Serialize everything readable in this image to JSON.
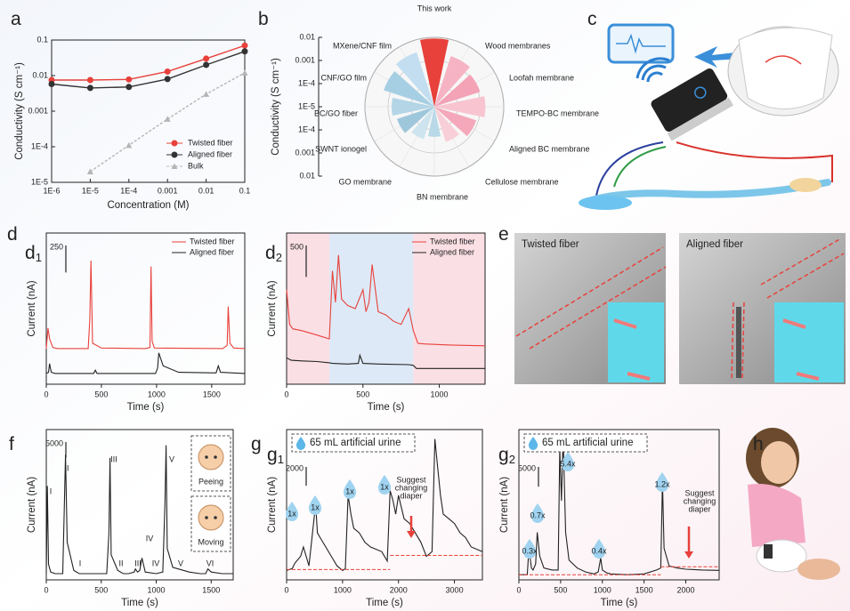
{
  "groups": [
    {
      "label": "d"
    },
    {
      "label": "g"
    }
  ],
  "figures": [
    {
      "label": "c"
    },
    {
      "label": "e",
      "captions": [
        "Twisted fiber",
        "Aligned fiber"
      ]
    },
    {
      "label": "h"
    }
  ],
  "chart_data": [
    {
      "type": "line",
      "label": "a",
      "xlabel": "Concentration (M)",
      "ylabel": "Conductivity (S cm⁻¹)",
      "xscale": "log",
      "yscale": "log",
      "legend": "lower right",
      "x": [
        1e-06,
        1e-05,
        0.0001,
        0.001,
        0.01,
        0.1
      ],
      "xlim": [
        1e-06,
        0.1
      ],
      "xticks": [
        {
          "value": 1e-06,
          "label": "1E-6"
        },
        {
          "value": 1e-05,
          "label": "1E-5"
        },
        {
          "value": 0.0001,
          "label": "1E-4"
        },
        0.001,
        0.01,
        0.1
      ],
      "ylim": [
        1e-05,
        0.1
      ],
      "yticks": [
        {
          "value": 1e-05,
          "label": "1E-5"
        },
        {
          "value": 0.0001,
          "label": "1E-4"
        },
        0.001,
        0.01,
        0.1
      ],
      "series": [
        {
          "name": "Twisted fiber",
          "color": "#e8413b",
          "marker": "circle",
          "values": [
            0.0075,
            0.0075,
            0.0078,
            0.013,
            0.03,
            0.07
          ]
        },
        {
          "name": "Aligned fiber",
          "color": "#333333",
          "marker": "circle",
          "values": [
            0.0058,
            0.0045,
            0.0048,
            0.008,
            0.02,
            0.048
          ]
        },
        {
          "name": "Bulk",
          "color": "#b5b5b5",
          "marker": "triangle",
          "dash": true,
          "values": [
            null,
            2e-05,
            0.00011,
            0.0006,
            0.003,
            0.012
          ]
        }
      ]
    },
    {
      "type": "polar-bar",
      "label": "b",
      "ylabel": "Conductivity (S cm⁻¹)",
      "rscale": "log",
      "rlim": [
        1e-05,
        0.01
      ],
      "rticks": [
        {
          "value": 1e-05,
          "label": "1E-5"
        },
        {
          "value": 0.0001,
          "label": "1E-4"
        },
        0.001,
        0.01
      ],
      "categories": [
        "This work",
        "Wood membranes",
        "Loofah membrane",
        "TEMPO-BC membrane",
        "Aligned BC membrane",
        "Cellulose membrane",
        "BN membrane",
        "GO membrane",
        "SWNT ionogel",
        "BC/GO fiber",
        "CNF/GO film",
        "MXene/CNF film"
      ],
      "values": [
        0.009,
        0.002,
        0.0012,
        0.0016,
        0.0008,
        0.0004,
        0.0002,
        0.0003,
        0.0005,
        0.0007,
        0.002,
        0.003
      ],
      "colors": [
        "#e8413b",
        "#f6b3c3",
        "#f4a2b6",
        "#f7c4d0",
        "#f4a8ba",
        "#f8cfd8",
        "#b9d9e8",
        "#cde4ee",
        "#9fc7dc",
        "#b3d5e6",
        "#a7cfe3",
        "#c2def0"
      ]
    },
    {
      "type": "trace",
      "label": "d",
      "label_sub": "1",
      "xlabel": "Time (s)",
      "ylabel": "Current (nA)",
      "xlim": [
        0,
        1800
      ],
      "xticks": [
        0,
        500,
        1000,
        1500
      ],
      "ylim": [
        0,
        1400
      ],
      "scalebar": 250,
      "series": [
        {
          "name": "Twisted fiber",
          "color": "#e8413b",
          "x": [
            0,
            15,
            30,
            60,
            100,
            380,
            395,
            405,
            420,
            500,
            900,
            940,
            950,
            960,
            980,
            1600,
            1640,
            1650,
            1665,
            1700,
            1800
          ],
          "values": [
            330,
            520,
            420,
            340,
            330,
            330,
            600,
            1145,
            380,
            335,
            330,
            340,
            1090,
            400,
            335,
            330,
            360,
            720,
            380,
            335,
            330
          ]
        },
        {
          "name": "Aligned fiber",
          "color": "#222222",
          "x": [
            0,
            20,
            30,
            45,
            80,
            430,
            445,
            460,
            990,
            1010,
            1020,
            1060,
            1200,
            1540,
            1560,
            1580,
            1800
          ],
          "values": [
            100,
            110,
            190,
            110,
            100,
            100,
            130,
            100,
            100,
            150,
            290,
            170,
            110,
            105,
            170,
            110,
            100
          ]
        }
      ]
    },
    {
      "type": "trace",
      "label": "d",
      "label_sub": "2",
      "xlabel": "Time (s)",
      "ylabel": "Current (nA)",
      "xlim": [
        0,
        1300
      ],
      "xticks": [
        0,
        500,
        1000
      ],
      "ylim": [
        0,
        2400
      ],
      "scalebar": 500,
      "regions": [
        {
          "x": [
            0,
            280
          ],
          "color": "#fadfe5"
        },
        {
          "x": [
            280,
            830
          ],
          "color": "#dde9f6"
        },
        {
          "x": [
            830,
            1300
          ],
          "color": "#fadfe5"
        }
      ],
      "series": [
        {
          "name": "Twisted fiber",
          "color": "#e8413b",
          "x": [
            0,
            20,
            40,
            100,
            200,
            280,
            300,
            320,
            340,
            360,
            400,
            450,
            500,
            520,
            540,
            560,
            600,
            650,
            700,
            750,
            800,
            830,
            860,
            900,
            1000,
            1100,
            1300
          ],
          "values": [
            1500,
            950,
            880,
            850,
            780,
            720,
            1800,
            1300,
            2050,
            1350,
            1250,
            1200,
            1500,
            1150,
            1300,
            1900,
            1150,
            1100,
            1000,
            950,
            1200,
            850,
            650,
            640,
            630,
            620,
            610
          ]
        },
        {
          "name": "Aligned fiber",
          "color": "#222222",
          "x": [
            0,
            30,
            100,
            200,
            280,
            300,
            400,
            470,
            480,
            500,
            600,
            800,
            830,
            850,
            1300
          ],
          "values": [
            420,
            380,
            370,
            360,
            340,
            330,
            320,
            330,
            460,
            330,
            320,
            310,
            300,
            250,
            250
          ]
        }
      ]
    },
    {
      "type": "trace",
      "label": "f",
      "xlabel": "Time (s)",
      "ylabel": "Current (nA)",
      "xlim": [
        0,
        1700
      ],
      "xticks": [
        0,
        500,
        1000,
        1500
      ],
      "ylim": [
        0,
        48000
      ],
      "scalebar": 5000,
      "icons": [
        "Peeing",
        "Moving"
      ],
      "annotations": [
        {
          "text": "I",
          "color": "#e8413b"
        },
        {
          "text": "II",
          "color": "#e8413b"
        },
        {
          "text": "III",
          "color": "#e8413b"
        },
        {
          "text": "IV",
          "color": "#e8413b"
        },
        {
          "text": "V",
          "color": "#e8413b"
        },
        {
          "text": "I",
          "color": "#222222"
        },
        {
          "text": "II",
          "color": "#222222"
        },
        {
          "text": "III",
          "color": "#222222"
        },
        {
          "text": "IV",
          "color": "#222222"
        },
        {
          "text": "V",
          "color": "#222222"
        },
        {
          "text": "VI",
          "color": "#222222"
        }
      ],
      "series": [
        {
          "color": "#222222",
          "x": [
            0,
            10,
            20,
            40,
            80,
            150,
            165,
            175,
            190,
            250,
            300,
            550,
            570,
            580,
            590,
            650,
            700,
            750,
            800,
            810,
            830,
            850,
            870,
            900,
            1000,
            1060,
            1080,
            1090,
            1100,
            1150,
            1300,
            1400,
            1450,
            1470,
            1500,
            1600,
            1700
          ],
          "values": [
            2000,
            30000,
            5000,
            2500,
            2000,
            2000,
            25000,
            40000,
            12000,
            3000,
            2000,
            2000,
            15000,
            39000,
            8000,
            3000,
            2000,
            2000,
            2500,
            3500,
            2500,
            3000,
            7000,
            2500,
            2000,
            2500,
            25000,
            43000,
            10000,
            4000,
            2500,
            2000,
            2000,
            3500,
            2500,
            2000,
            2000
          ]
        }
      ]
    },
    {
      "type": "trace",
      "label": "g",
      "label_sub": "1",
      "xlabel": "Time (s)",
      "ylabel": "Current (nA)",
      "xlim": [
        0,
        3500
      ],
      "xticks": [
        0,
        1000,
        2000,
        3000
      ],
      "ylim": [
        0,
        16000
      ],
      "scalebar": 2000,
      "callout": "65 mL artificial urine",
      "warning": [
        "Suggest",
        "changing",
        "diaper"
      ],
      "annotations": [
        {
          "text": "1x",
          "color": "#333333"
        },
        {
          "text": "1x",
          "color": "#333333"
        },
        {
          "text": "1x",
          "color": "#333333"
        },
        {
          "text": "1x",
          "color": "#333333"
        }
      ],
      "series": [
        {
          "color": "#222222",
          "x": [
            0,
            100,
            150,
            250,
            300,
            400,
            500,
            520,
            550,
            600,
            700,
            800,
            900,
            1000,
            1050,
            1100,
            1150,
            1200,
            1300,
            1400,
            1500,
            1700,
            1800,
            1850,
            1900,
            1950,
            2000,
            2100,
            2200,
            2300,
            2400,
            2500,
            2600,
            2650,
            2700,
            2750,
            2800,
            2900,
            3000,
            3100,
            3200,
            3300,
            3500
          ],
          "values": [
            1000,
            1200,
            1800,
            2500,
            3500,
            1500,
            7000,
            8000,
            5000,
            4500,
            3500,
            2500,
            1500,
            1000,
            1200,
            9000,
            7000,
            5500,
            5000,
            4000,
            3500,
            3000,
            2000,
            9500,
            8500,
            7000,
            9000,
            6500,
            6000,
            5000,
            4000,
            2500,
            3000,
            15000,
            12000,
            9000,
            7000,
            6500,
            6000,
            5000,
            4500,
            3500,
            3000
          ]
        },
        {
          "color": "#e8413b",
          "dash": true,
          "x": [
            0,
            1850
          ],
          "values": [
            1100,
            1100
          ]
        },
        {
          "color": "#e8413b",
          "dash": true,
          "x": [
            1850,
            3500
          ],
          "values": [
            2600,
            2600
          ]
        }
      ]
    },
    {
      "type": "trace",
      "label": "g",
      "label_sub": "2",
      "xlabel": "Time (s)",
      "ylabel": "Current (nA)",
      "xlim": [
        0,
        2400
      ],
      "xticks": [
        0,
        500,
        1000,
        1500,
        2000
      ],
      "ylim": [
        0,
        38000
      ],
      "scalebar": 5000,
      "callout": "65 mL artificial urine",
      "warning": [
        "Suggest",
        "changing",
        "diaper"
      ],
      "annotations": [
        {
          "text": "0.3x",
          "color": "#333333"
        },
        {
          "text": "0.7x",
          "color": "#333333"
        },
        {
          "text": "5.4x",
          "color": "#333333"
        },
        {
          "text": "0.4x",
          "color": "#333333"
        },
        {
          "text": "1.2x",
          "color": "#333333"
        }
      ],
      "series": [
        {
          "color": "#222222",
          "x": [
            0,
            100,
            120,
            150,
            170,
            200,
            220,
            250,
            300,
            400,
            470,
            490,
            510,
            530,
            560,
            600,
            700,
            800,
            900,
            950,
            980,
            1000,
            1050,
            1100,
            1300,
            1500,
            1650,
            1700,
            1720,
            1740,
            1800,
            1900,
            2000,
            2100,
            2200,
            2400
          ],
          "values": [
            1300,
            1300,
            8000,
            3000,
            2500,
            4000,
            12000,
            6000,
            3000,
            2500,
            2500,
            33000,
            20000,
            36500,
            12000,
            5000,
            3000,
            2000,
            1500,
            2000,
            5500,
            2500,
            1800,
            1500,
            1300,
            1500,
            2500,
            3000,
            25000,
            8000,
            3500,
            3000,
            2700,
            2600,
            2500,
            2400
          ]
        },
        {
          "color": "#e8413b",
          "dash": true,
          "x": [
            0,
            1700
          ],
          "values": [
            1300,
            1300
          ]
        },
        {
          "color": "#e8413b",
          "dash": true,
          "x": [
            1700,
            2400
          ],
          "values": [
            3300,
            3300
          ]
        }
      ]
    }
  ]
}
